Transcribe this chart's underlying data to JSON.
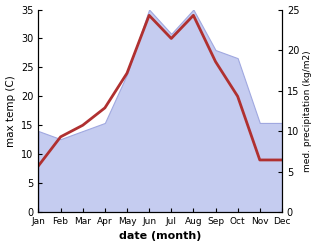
{
  "months": [
    "Jan",
    "Feb",
    "Mar",
    "Apr",
    "May",
    "Jun",
    "Jul",
    "Aug",
    "Sep",
    "Oct",
    "Nov",
    "Dec"
  ],
  "temperature": [
    8,
    13,
    15,
    18,
    24,
    34,
    30,
    34,
    26,
    20,
    9,
    9
  ],
  "precipitation": [
    10,
    9,
    10,
    11,
    17,
    25,
    22,
    25,
    20,
    19,
    11,
    11
  ],
  "temp_color": "#b03030",
  "precip_fill_color": "#c5ccf0",
  "precip_edge_color": "#a0a8e0",
  "background_color": "#ffffff",
  "xlabel": "date (month)",
  "ylabel_left": "max temp (C)",
  "ylabel_right": "med. precipitation (kg/m2)",
  "ylim_left": [
    0,
    35
  ],
  "ylim_right": [
    0,
    25
  ],
  "yticks_left": [
    0,
    5,
    10,
    15,
    20,
    25,
    30,
    35
  ],
  "yticks_right": [
    0,
    5,
    10,
    15,
    20,
    25
  ],
  "line_width": 2.0,
  "figsize": [
    3.18,
    2.47
  ],
  "dpi": 100
}
